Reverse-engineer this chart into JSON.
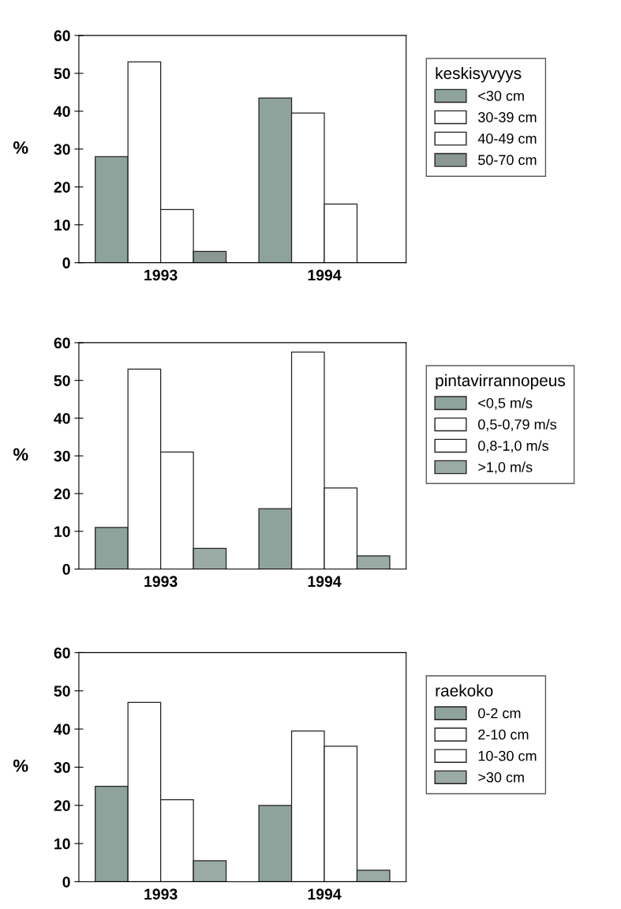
{
  "chart_data": [
    {
      "type": "bar",
      "legend_title": "keskisyvyys",
      "ylabel": "%",
      "categories": [
        "1993",
        "1994"
      ],
      "ylim": [
        0,
        60
      ],
      "yticks": [
        0,
        10,
        20,
        30,
        40,
        50,
        60
      ],
      "grid": false,
      "legend": "right",
      "series": [
        {
          "name": "<30 cm",
          "color": "#8fa39d",
          "values": [
            28,
            43.5
          ]
        },
        {
          "name": "30-39 cm",
          "color": "#ffffff",
          "values": [
            53,
            39.5
          ]
        },
        {
          "name": "40-49 cm",
          "color": "#ffffff",
          "values": [
            14,
            15.5
          ]
        },
        {
          "name": "50-70 cm",
          "color": "#8a9893",
          "values": [
            3,
            null
          ]
        }
      ]
    },
    {
      "type": "bar",
      "legend_title": "pintavirrannopeus",
      "ylabel": "%",
      "categories": [
        "1993",
        "1994"
      ],
      "ylim": [
        0,
        60
      ],
      "yticks": [
        0,
        10,
        20,
        30,
        40,
        50,
        60
      ],
      "grid": false,
      "legend": "right",
      "series": [
        {
          "name": "<0,5 m/s",
          "color": "#8fa39d",
          "values": [
            11,
            16
          ]
        },
        {
          "name": "0,5-0,79 m/s",
          "color": "#ffffff",
          "values": [
            53,
            57.5
          ]
        },
        {
          "name": "0,8-1,0 m/s",
          "color": "#ffffff",
          "values": [
            31,
            21.5
          ]
        },
        {
          "name": ">1,0 m/s",
          "color": "#9aaaa5",
          "values": [
            5.5,
            3.5
          ]
        }
      ]
    },
    {
      "type": "bar",
      "legend_title": "raekoko",
      "ylabel": "%",
      "categories": [
        "1993",
        "1994"
      ],
      "ylim": [
        0,
        60
      ],
      "yticks": [
        0,
        10,
        20,
        30,
        40,
        50,
        60
      ],
      "grid": false,
      "legend": "right",
      "series": [
        {
          "name": "0-2 cm",
          "color": "#8fa39d",
          "values": [
            25,
            20
          ]
        },
        {
          "name": "2-10 cm",
          "color": "#ffffff",
          "values": [
            47,
            39.5
          ]
        },
        {
          "name": "10-30 cm",
          "color": "#ffffff",
          "values": [
            21.5,
            35.5
          ]
        },
        {
          "name": ">30 cm",
          "color": "#9aaaa5",
          "values": [
            5.5,
            3
          ]
        }
      ]
    }
  ]
}
